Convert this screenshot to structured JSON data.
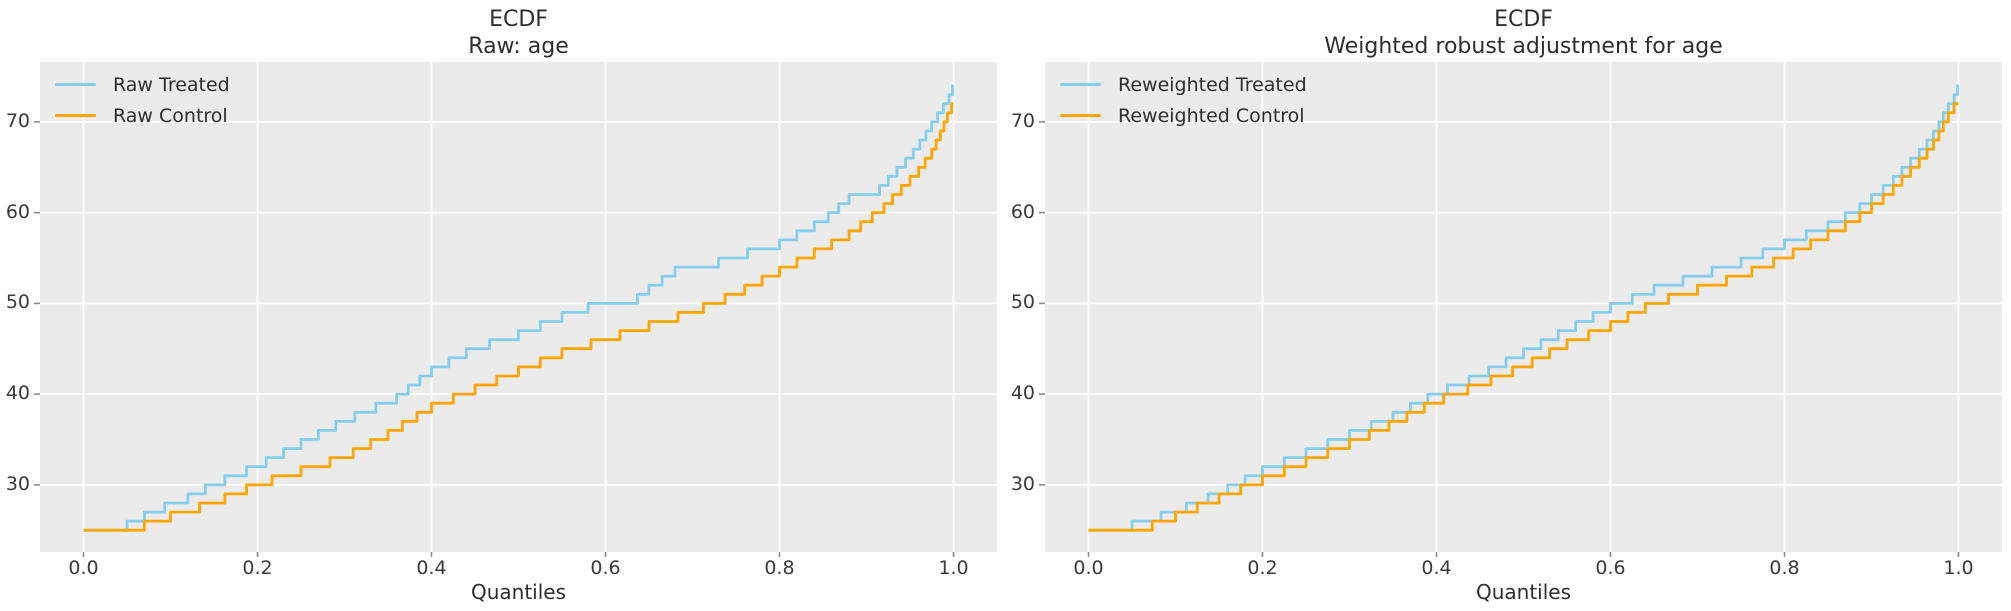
{
  "figure": {
    "background": "#ffffff",
    "panel_background": "#ebebeb",
    "grid_color": "#ffffff",
    "tick_mark_color": "#8b8b8b",
    "text_color": "#2e2e2e"
  },
  "chart_data": [
    {
      "type": "line",
      "subtype": "ecdf-quantile-step",
      "title": "ECDF",
      "subtitle": "Raw: age",
      "xlabel": "Quantiles",
      "x_ticks": [
        0.0,
        0.2,
        0.4,
        0.6,
        0.8,
        1.0
      ],
      "x_tick_labels": [
        "0.0",
        "0.2",
        "0.4",
        "0.6",
        "0.8",
        "1.0"
      ],
      "y_ticks": [
        30,
        40,
        50,
        60,
        70
      ],
      "y_tick_labels": [
        "30",
        "40",
        "50",
        "60",
        "70"
      ],
      "xlim": [
        -0.05,
        1.05
      ],
      "ylim": [
        22.6,
        76.6
      ],
      "grid": true,
      "legend_position": "upper-left",
      "series": [
        {
          "name": "Raw Treated",
          "color": "#87CEEB",
          "anchors": [
            [
              0,
              25
            ],
            [
              0.03,
              25
            ],
            [
              0.05,
              26
            ],
            [
              0.08,
              27.5
            ],
            [
              0.12,
              29
            ],
            [
              0.15,
              30.5
            ],
            [
              0.2,
              32.5
            ],
            [
              0.25,
              35
            ],
            [
              0.3,
              37.5
            ],
            [
              0.36,
              40
            ],
            [
              0.4,
              43
            ],
            [
              0.45,
              45.5
            ],
            [
              0.5,
              47
            ],
            [
              0.55,
              49
            ],
            [
              0.58,
              50
            ],
            [
              0.63,
              50.5
            ],
            [
              0.65,
              52
            ],
            [
              0.68,
              54
            ],
            [
              0.73,
              55
            ],
            [
              0.78,
              56.5
            ],
            [
              0.8,
              57
            ],
            [
              0.85,
              59.5
            ],
            [
              0.88,
              62
            ],
            [
              0.91,
              62.5
            ],
            [
              0.93,
              64.5
            ],
            [
              0.95,
              66.5
            ],
            [
              0.965,
              68.5
            ],
            [
              0.975,
              70
            ],
            [
              0.985,
              71.5
            ],
            [
              0.995,
              73
            ],
            [
              1,
              74.3
            ]
          ]
        },
        {
          "name": "Raw Control",
          "color": "#FFA500",
          "anchors": [
            [
              0,
              25
            ],
            [
              0.04,
              25
            ],
            [
              0.07,
              26
            ],
            [
              0.1,
              27
            ],
            [
              0.15,
              28.5
            ],
            [
              0.2,
              30.5
            ],
            [
              0.25,
              32
            ],
            [
              0.3,
              33.5
            ],
            [
              0.35,
              36
            ],
            [
              0.4,
              39
            ],
            [
              0.45,
              41
            ],
            [
              0.5,
              43
            ],
            [
              0.55,
              45
            ],
            [
              0.6,
              46.5
            ],
            [
              0.65,
              48
            ],
            [
              0.7,
              49.5
            ],
            [
              0.75,
              51.5
            ],
            [
              0.8,
              54
            ],
            [
              0.85,
              56.5
            ],
            [
              0.88,
              58
            ],
            [
              0.9,
              59.5
            ],
            [
              0.92,
              61
            ],
            [
              0.94,
              63
            ],
            [
              0.96,
              65
            ],
            [
              0.975,
              67
            ],
            [
              0.985,
              69
            ],
            [
              0.995,
              71.5
            ],
            [
              1,
              72.4
            ]
          ]
        }
      ]
    },
    {
      "type": "line",
      "subtype": "ecdf-quantile-step",
      "title": "ECDF",
      "subtitle": "Weighted robust adjustment for age",
      "xlabel": "Quantiles",
      "x_ticks": [
        0.0,
        0.2,
        0.4,
        0.6,
        0.8,
        1.0
      ],
      "x_tick_labels": [
        "0.0",
        "0.2",
        "0.4",
        "0.6",
        "0.8",
        "1.0"
      ],
      "y_ticks": [
        30,
        40,
        50,
        60,
        70
      ],
      "y_tick_labels": [
        "30",
        "40",
        "50",
        "60",
        "70"
      ],
      "xlim": [
        -0.05,
        1.05
      ],
      "ylim": [
        22.6,
        76.6
      ],
      "grid": true,
      "legend_position": "upper-left",
      "series": [
        {
          "name": "Reweighted Treated",
          "color": "#87CEEB",
          "anchors": [
            [
              0,
              25
            ],
            [
              0.025,
              25
            ],
            [
              0.05,
              26
            ],
            [
              0.1,
              27.5
            ],
            [
              0.15,
              29.5
            ],
            [
              0.2,
              32
            ],
            [
              0.25,
              34
            ],
            [
              0.3,
              36
            ],
            [
              0.35,
              38
            ],
            [
              0.4,
              40.5
            ],
            [
              0.45,
              42.5
            ],
            [
              0.5,
              45
            ],
            [
              0.55,
              47.5
            ],
            [
              0.6,
              50
            ],
            [
              0.65,
              52
            ],
            [
              0.7,
              53.5
            ],
            [
              0.75,
              55
            ],
            [
              0.8,
              57
            ],
            [
              0.85,
              59
            ],
            [
              0.88,
              60.5
            ],
            [
              0.9,
              62
            ],
            [
              0.92,
              63.5
            ],
            [
              0.94,
              65.5
            ],
            [
              0.96,
              67.5
            ],
            [
              0.975,
              69.5
            ],
            [
              0.985,
              71.5
            ],
            [
              0.995,
              73
            ],
            [
              1,
              74.3
            ]
          ]
        },
        {
          "name": "Reweighted Control",
          "color": "#FFA500",
          "anchors": [
            [
              0,
              25
            ],
            [
              0.035,
              25
            ],
            [
              0.06,
              25.5
            ],
            [
              0.1,
              27
            ],
            [
              0.15,
              29
            ],
            [
              0.2,
              31
            ],
            [
              0.25,
              33
            ],
            [
              0.3,
              35
            ],
            [
              0.35,
              37.2
            ],
            [
              0.4,
              39.7
            ],
            [
              0.45,
              41.5
            ],
            [
              0.5,
              43.5
            ],
            [
              0.55,
              46
            ],
            [
              0.6,
              48
            ],
            [
              0.65,
              50.5
            ],
            [
              0.7,
              52
            ],
            [
              0.75,
              53.5
            ],
            [
              0.8,
              55.5
            ],
            [
              0.85,
              58
            ],
            [
              0.88,
              59.5
            ],
            [
              0.9,
              61
            ],
            [
              0.92,
              62.5
            ],
            [
              0.94,
              64.5
            ],
            [
              0.96,
              66.5
            ],
            [
              0.975,
              68.5
            ],
            [
              0.985,
              70.5
            ],
            [
              0.995,
              72
            ],
            [
              1,
              72.5
            ]
          ]
        }
      ]
    }
  ]
}
